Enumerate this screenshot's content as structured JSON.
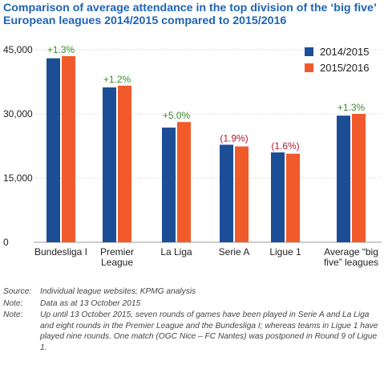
{
  "title_lines": [
    "Comparison of average attendance in the top division of the ‘big five’",
    "European leagues 2014/2015 compared to 2015/2016"
  ],
  "colors": {
    "title": "#1e64b4",
    "series_2014": "#1c4e96",
    "series_2015": "#f15a2b",
    "growth_positive": "#3c8a2e",
    "growth_negative": "#b0172e",
    "grid": "#c8c8c8"
  },
  "chart_data": {
    "type": "bar",
    "categories": [
      [
        "Bundesliga I"
      ],
      [
        "Premier",
        "League"
      ],
      [
        "La Liga"
      ],
      [
        "Serie A"
      ],
      [
        "Ligue 1"
      ],
      [
        "Average “big",
        "five” leagues"
      ]
    ],
    "series": [
      {
        "name": "2014/2015",
        "values": [
          43000,
          36200,
          26800,
          22800,
          21000,
          29600
        ]
      },
      {
        "name": "2015/2016",
        "values": [
          43500,
          36600,
          28100,
          22400,
          20700,
          30000
        ]
      }
    ],
    "change_labels": [
      "+1.3%",
      "+1.2%",
      "+5.0%",
      "(1.9%)",
      "(1.6%)",
      "+1.3%"
    ],
    "change_positive": [
      true,
      true,
      true,
      false,
      false,
      true
    ],
    "y_ticks": [
      0,
      15000,
      30000,
      45000
    ],
    "y_tick_labels": [
      "0",
      "15,000",
      "30,000",
      "45,000"
    ],
    "ylim": [
      0,
      45000
    ],
    "grid": "horizontal",
    "legend_position": "top-right"
  },
  "notes": [
    {
      "key": "Source:",
      "text": "Individual league websites; KPMG analysis"
    },
    {
      "key": "Note:",
      "text": "Data as at 13 October 2015"
    },
    {
      "key": "Note:",
      "text": "Up until 13 October 2015, seven rounds of games have been played in Serie A and La Liga and eight rounds in the Premier League and the Bundesliga I; whereas teams in Ligue 1 have played nine rounds. One match (OGC Nice – FC Nantes) was postponed in Round 9 of Ligue 1."
    }
  ]
}
